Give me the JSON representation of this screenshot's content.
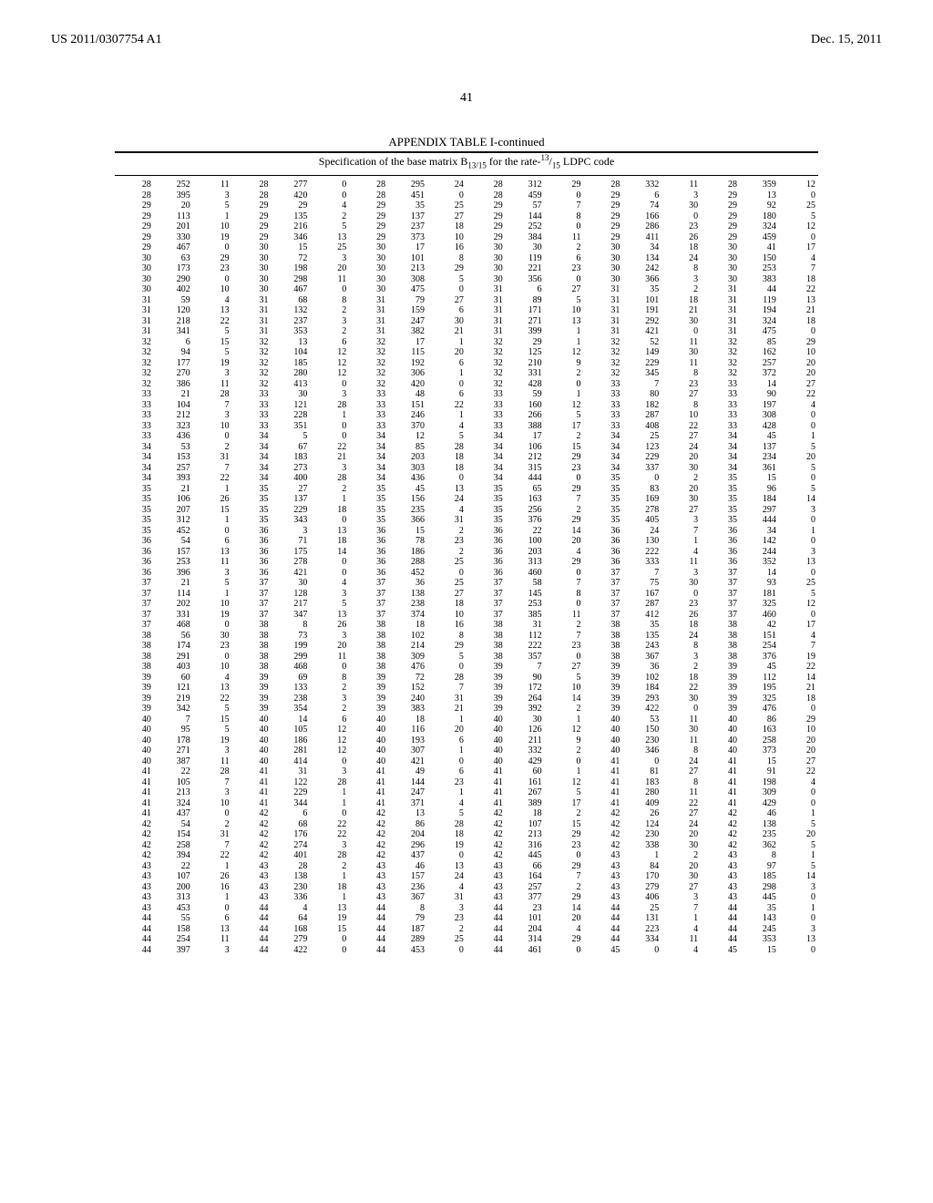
{
  "header": {
    "patent_id": "US 2011/0307754 A1",
    "date": "Dec. 15, 2011"
  },
  "page_number": "41",
  "table": {
    "title": "APPENDIX TABLE I-continued",
    "subtitle_prefix": "Specification of the base matrix B",
    "subtitle_sub": "13/15",
    "subtitle_mid": " for the rate-",
    "subtitle_frac_num": "13",
    "subtitle_frac_den": "15",
    "subtitle_suffix": " LDPC code",
    "rows": [
      [
        28,
        252,
        11,
        28,
        277,
        0,
        28,
        295,
        24,
        28,
        312,
        29,
        28,
        332,
        11,
        28,
        359,
        12
      ],
      [
        28,
        395,
        3,
        28,
        420,
        0,
        28,
        451,
        0,
        28,
        459,
        0,
        29,
        6,
        3,
        29,
        13,
        0
      ],
      [
        29,
        20,
        5,
        29,
        29,
        4,
        29,
        35,
        25,
        29,
        57,
        7,
        29,
        74,
        30,
        29,
        92,
        25
      ],
      [
        29,
        113,
        1,
        29,
        135,
        2,
        29,
        137,
        27,
        29,
        144,
        8,
        29,
        166,
        0,
        29,
        180,
        5
      ],
      [
        29,
        201,
        10,
        29,
        216,
        5,
        29,
        237,
        18,
        29,
        252,
        0,
        29,
        286,
        23,
        29,
        324,
        12
      ],
      [
        29,
        330,
        19,
        29,
        346,
        13,
        29,
        373,
        10,
        29,
        384,
        11,
        29,
        411,
        26,
        29,
        459,
        0
      ],
      [
        29,
        467,
        0,
        30,
        15,
        25,
        30,
        17,
        16,
        30,
        30,
        2,
        30,
        34,
        18,
        30,
        41,
        17
      ],
      [
        30,
        63,
        29,
        30,
        72,
        3,
        30,
        101,
        8,
        30,
        119,
        6,
        30,
        134,
        24,
        30,
        150,
        4
      ],
      [
        30,
        173,
        23,
        30,
        198,
        20,
        30,
        213,
        29,
        30,
        221,
        23,
        30,
        242,
        8,
        30,
        253,
        7
      ],
      [
        30,
        290,
        0,
        30,
        298,
        11,
        30,
        308,
        5,
        30,
        356,
        0,
        30,
        366,
        3,
        30,
        383,
        18
      ],
      [
        30,
        402,
        10,
        30,
        467,
        0,
        30,
        475,
        0,
        31,
        6,
        27,
        31,
        35,
        2,
        31,
        44,
        22
      ],
      [
        31,
        59,
        4,
        31,
        68,
        8,
        31,
        79,
        27,
        31,
        89,
        5,
        31,
        101,
        18,
        31,
        119,
        13
      ],
      [
        31,
        120,
        13,
        31,
        132,
        2,
        31,
        159,
        6,
        31,
        171,
        10,
        31,
        191,
        21,
        31,
        194,
        21
      ],
      [
        31,
        218,
        22,
        31,
        237,
        3,
        31,
        247,
        30,
        31,
        271,
        13,
        31,
        292,
        30,
        31,
        324,
        18
      ],
      [
        31,
        341,
        5,
        31,
        353,
        2,
        31,
        382,
        21,
        31,
        399,
        1,
        31,
        421,
        0,
        31,
        475,
        0
      ],
      [
        32,
        6,
        15,
        32,
        13,
        6,
        32,
        17,
        1,
        32,
        29,
        1,
        32,
        52,
        11,
        32,
        85,
        29
      ],
      [
        32,
        94,
        5,
        32,
        104,
        12,
        32,
        115,
        20,
        32,
        125,
        12,
        32,
        149,
        30,
        32,
        162,
        10
      ],
      [
        32,
        177,
        19,
        32,
        185,
        12,
        32,
        192,
        6,
        32,
        210,
        9,
        32,
        229,
        11,
        32,
        257,
        20
      ],
      [
        32,
        270,
        3,
        32,
        280,
        12,
        32,
        306,
        1,
        32,
        331,
        2,
        32,
        345,
        8,
        32,
        372,
        20
      ],
      [
        32,
        386,
        11,
        32,
        413,
        0,
        32,
        420,
        0,
        32,
        428,
        0,
        33,
        7,
        23,
        33,
        14,
        27
      ],
      [
        33,
        21,
        28,
        33,
        30,
        3,
        33,
        48,
        6,
        33,
        59,
        1,
        33,
        80,
        27,
        33,
        90,
        22
      ],
      [
        33,
        104,
        7,
        33,
        121,
        28,
        33,
        151,
        22,
        33,
        160,
        12,
        33,
        182,
        8,
        33,
        197,
        4
      ],
      [
        33,
        212,
        3,
        33,
        228,
        1,
        33,
        246,
        1,
        33,
        266,
        5,
        33,
        287,
        10,
        33,
        308,
        0
      ],
      [
        33,
        323,
        10,
        33,
        351,
        0,
        33,
        370,
        4,
        33,
        388,
        17,
        33,
        408,
        22,
        33,
        428,
        0
      ],
      [
        33,
        436,
        0,
        34,
        5,
        0,
        34,
        12,
        5,
        34,
        17,
        2,
        34,
        25,
        27,
        34,
        45,
        1
      ],
      [
        34,
        53,
        2,
        34,
        67,
        22,
        34,
        85,
        28,
        34,
        106,
        15,
        34,
        123,
        24,
        34,
        137,
        5
      ],
      [
        34,
        153,
        31,
        34,
        183,
        21,
        34,
        203,
        18,
        34,
        212,
        29,
        34,
        229,
        20,
        34,
        234,
        20
      ],
      [
        34,
        257,
        7,
        34,
        273,
        3,
        34,
        303,
        18,
        34,
        315,
        23,
        34,
        337,
        30,
        34,
        361,
        5
      ],
      [
        34,
        393,
        22,
        34,
        400,
        28,
        34,
        436,
        0,
        34,
        444,
        0,
        35,
        0,
        2,
        35,
        15,
        0
      ],
      [
        35,
        21,
        1,
        35,
        27,
        2,
        35,
        45,
        13,
        35,
        65,
        29,
        35,
        83,
        20,
        35,
        96,
        5
      ],
      [
        35,
        106,
        26,
        35,
        137,
        1,
        35,
        156,
        24,
        35,
        163,
        7,
        35,
        169,
        30,
        35,
        184,
        14
      ],
      [
        35,
        207,
        15,
        35,
        229,
        18,
        35,
        235,
        4,
        35,
        256,
        2,
        35,
        278,
        27,
        35,
        297,
        3
      ],
      [
        35,
        312,
        1,
        35,
        343,
        0,
        35,
        366,
        31,
        35,
        376,
        29,
        35,
        405,
        3,
        35,
        444,
        0
      ],
      [
        35,
        452,
        0,
        36,
        3,
        13,
        36,
        15,
        2,
        36,
        22,
        14,
        36,
        24,
        7,
        36,
        34,
        1
      ],
      [
        36,
        54,
        6,
        36,
        71,
        18,
        36,
        78,
        23,
        36,
        100,
        20,
        36,
        130,
        1,
        36,
        142,
        0
      ],
      [
        36,
        157,
        13,
        36,
        175,
        14,
        36,
        186,
        2,
        36,
        203,
        4,
        36,
        222,
        4,
        36,
        244,
        3
      ],
      [
        36,
        253,
        11,
        36,
        278,
        0,
        36,
        288,
        25,
        36,
        313,
        29,
        36,
        333,
        11,
        36,
        352,
        13
      ],
      [
        36,
        396,
        3,
        36,
        421,
        0,
        36,
        452,
        0,
        36,
        460,
        0,
        37,
        7,
        3,
        37,
        14,
        0
      ],
      [
        37,
        21,
        5,
        37,
        30,
        4,
        37,
        36,
        25,
        37,
        58,
        7,
        37,
        75,
        30,
        37,
        93,
        25
      ],
      [
        37,
        114,
        1,
        37,
        128,
        3,
        37,
        138,
        27,
        37,
        145,
        8,
        37,
        167,
        0,
        37,
        181,
        5
      ],
      [
        37,
        202,
        10,
        37,
        217,
        5,
        37,
        238,
        18,
        37,
        253,
        0,
        37,
        287,
        23,
        37,
        325,
        12
      ],
      [
        37,
        331,
        19,
        37,
        347,
        13,
        37,
        374,
        10,
        37,
        385,
        11,
        37,
        412,
        26,
        37,
        460,
        0
      ],
      [
        37,
        468,
        0,
        38,
        8,
        26,
        38,
        18,
        16,
        38,
        31,
        2,
        38,
        35,
        18,
        38,
        42,
        17
      ],
      [
        38,
        56,
        30,
        38,
        73,
        3,
        38,
        102,
        8,
        38,
        112,
        7,
        38,
        135,
        24,
        38,
        151,
        4
      ],
      [
        38,
        174,
        23,
        38,
        199,
        20,
        38,
        214,
        29,
        38,
        222,
        23,
        38,
        243,
        8,
        38,
        254,
        7
      ],
      [
        38,
        291,
        0,
        38,
        299,
        11,
        38,
        309,
        5,
        38,
        357,
        0,
        38,
        367,
        3,
        38,
        376,
        19
      ],
      [
        38,
        403,
        10,
        38,
        468,
        0,
        38,
        476,
        0,
        39,
        7,
        27,
        39,
        36,
        2,
        39,
        45,
        22
      ],
      [
        39,
        60,
        4,
        39,
        69,
        8,
        39,
        72,
        28,
        39,
        90,
        5,
        39,
        102,
        18,
        39,
        112,
        14
      ],
      [
        39,
        121,
        13,
        39,
        133,
        2,
        39,
        152,
        7,
        39,
        172,
        10,
        39,
        184,
        22,
        39,
        195,
        21
      ],
      [
        39,
        219,
        22,
        39,
        238,
        3,
        39,
        240,
        31,
        39,
        264,
        14,
        39,
        293,
        30,
        39,
        325,
        18
      ],
      [
        39,
        342,
        5,
        39,
        354,
        2,
        39,
        383,
        21,
        39,
        392,
        2,
        39,
        422,
        0,
        39,
        476,
        0
      ],
      [
        40,
        7,
        15,
        40,
        14,
        6,
        40,
        18,
        1,
        40,
        30,
        1,
        40,
        53,
        11,
        40,
        86,
        29
      ],
      [
        40,
        95,
        5,
        40,
        105,
        12,
        40,
        116,
        20,
        40,
        126,
        12,
        40,
        150,
        30,
        40,
        163,
        10
      ],
      [
        40,
        178,
        19,
        40,
        186,
        12,
        40,
        193,
        6,
        40,
        211,
        9,
        40,
        230,
        11,
        40,
        258,
        20
      ],
      [
        40,
        271,
        3,
        40,
        281,
        12,
        40,
        307,
        1,
        40,
        332,
        2,
        40,
        346,
        8,
        40,
        373,
        20
      ],
      [
        40,
        387,
        11,
        40,
        414,
        0,
        40,
        421,
        0,
        40,
        429,
        0,
        41,
        0,
        24,
        41,
        15,
        27
      ],
      [
        41,
        22,
        28,
        41,
        31,
        3,
        41,
        49,
        6,
        41,
        60,
        1,
        41,
        81,
        27,
        41,
        91,
        22
      ],
      [
        41,
        105,
        7,
        41,
        122,
        28,
        41,
        144,
        23,
        41,
        161,
        12,
        41,
        183,
        8,
        41,
        198,
        4
      ],
      [
        41,
        213,
        3,
        41,
        229,
        1,
        41,
        247,
        1,
        41,
        267,
        5,
        41,
        280,
        11,
        41,
        309,
        0
      ],
      [
        41,
        324,
        10,
        41,
        344,
        1,
        41,
        371,
        4,
        41,
        389,
        17,
        41,
        409,
        22,
        41,
        429,
        0
      ],
      [
        41,
        437,
        0,
        42,
        6,
        0,
        42,
        13,
        5,
        42,
        18,
        2,
        42,
        26,
        27,
        42,
        46,
        1
      ],
      [
        42,
        54,
        2,
        42,
        68,
        22,
        42,
        86,
        28,
        42,
        107,
        15,
        42,
        124,
        24,
        42,
        138,
        5
      ],
      [
        42,
        154,
        31,
        42,
        176,
        22,
        42,
        204,
        18,
        42,
        213,
        29,
        42,
        230,
        20,
        42,
        235,
        20
      ],
      [
        42,
        258,
        7,
        42,
        274,
        3,
        42,
        296,
        19,
        42,
        316,
        23,
        42,
        338,
        30,
        42,
        362,
        5
      ],
      [
        42,
        394,
        22,
        42,
        401,
        28,
        42,
        437,
        0,
        42,
        445,
        0,
        43,
        1,
        2,
        43,
        8,
        1
      ],
      [
        43,
        22,
        1,
        43,
        28,
        2,
        43,
        46,
        13,
        43,
        66,
        29,
        43,
        84,
        20,
        43,
        97,
        5
      ],
      [
        43,
        107,
        26,
        43,
        138,
        1,
        43,
        157,
        24,
        43,
        164,
        7,
        43,
        170,
        30,
        43,
        185,
        14
      ],
      [
        43,
        200,
        16,
        43,
        230,
        18,
        43,
        236,
        4,
        43,
        257,
        2,
        43,
        279,
        27,
        43,
        298,
        3
      ],
      [
        43,
        313,
        1,
        43,
        336,
        1,
        43,
        367,
        31,
        43,
        377,
        29,
        43,
        406,
        3,
        43,
        445,
        0
      ],
      [
        43,
        453,
        0,
        44,
        4,
        13,
        44,
        8,
        3,
        44,
        23,
        14,
        44,
        25,
        7,
        44,
        35,
        1
      ],
      [
        44,
        55,
        6,
        44,
        64,
        19,
        44,
        79,
        23,
        44,
        101,
        20,
        44,
        131,
        1,
        44,
        143,
        0
      ],
      [
        44,
        158,
        13,
        44,
        168,
        15,
        44,
        187,
        2,
        44,
        204,
        4,
        44,
        223,
        4,
        44,
        245,
        3
      ],
      [
        44,
        254,
        11,
        44,
        279,
        0,
        44,
        289,
        25,
        44,
        314,
        29,
        44,
        334,
        11,
        44,
        353,
        13
      ],
      [
        44,
        397,
        3,
        44,
        422,
        0,
        44,
        453,
        0,
        44,
        461,
        0,
        45,
        0,
        4,
        45,
        15,
        0
      ]
    ]
  }
}
